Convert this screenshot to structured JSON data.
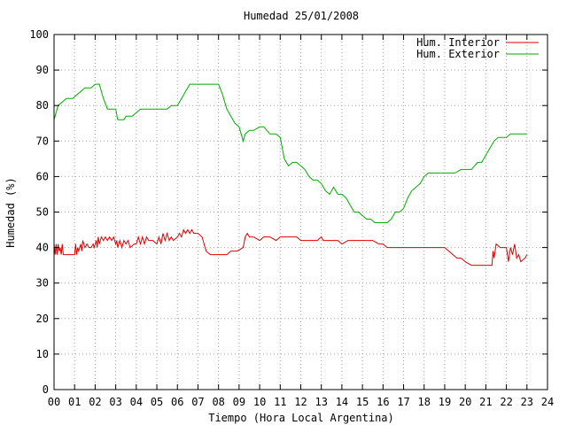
{
  "chart_data": {
    "type": "line",
    "title": "Humedad 25/01/2008",
    "xlabel": "Tiempo (Hora Local Argentina)",
    "ylabel": "Humedad (%)",
    "xlim": [
      0,
      24
    ],
    "ylim": [
      0,
      100
    ],
    "x_ticks": [
      "00",
      "01",
      "02",
      "03",
      "04",
      "05",
      "06",
      "07",
      "08",
      "09",
      "10",
      "11",
      "12",
      "13",
      "14",
      "15",
      "16",
      "17",
      "18",
      "19",
      "20",
      "21",
      "22",
      "23",
      "24"
    ],
    "y_ticks": [
      0,
      10,
      20,
      30,
      40,
      50,
      60,
      70,
      80,
      90,
      100
    ],
    "grid": true,
    "legend_position": "top-right",
    "series": [
      {
        "name": "Hum. Interior",
        "color": "#dd0000",
        "points": [
          [
            0.0,
            41
          ],
          [
            0.05,
            38
          ],
          [
            0.1,
            41
          ],
          [
            0.15,
            38
          ],
          [
            0.2,
            41
          ],
          [
            0.25,
            39
          ],
          [
            0.3,
            40
          ],
          [
            0.35,
            38
          ],
          [
            0.4,
            41
          ],
          [
            0.45,
            38
          ],
          [
            0.5,
            38
          ],
          [
            0.6,
            38
          ],
          [
            0.8,
            38
          ],
          [
            1.0,
            38
          ],
          [
            1.05,
            41
          ],
          [
            1.1,
            38
          ],
          [
            1.15,
            40
          ],
          [
            1.2,
            39
          ],
          [
            1.3,
            41
          ],
          [
            1.35,
            39
          ],
          [
            1.4,
            42
          ],
          [
            1.5,
            40
          ],
          [
            1.6,
            41
          ],
          [
            1.7,
            40
          ],
          [
            1.8,
            40
          ],
          [
            1.9,
            41
          ],
          [
            1.95,
            40
          ],
          [
            2.05,
            42
          ],
          [
            2.1,
            40
          ],
          [
            2.15,
            43
          ],
          [
            2.2,
            41
          ],
          [
            2.3,
            43
          ],
          [
            2.4,
            42
          ],
          [
            2.5,
            43
          ],
          [
            2.6,
            42
          ],
          [
            2.7,
            43
          ],
          [
            2.8,
            42
          ],
          [
            2.9,
            43
          ],
          [
            3.0,
            41
          ],
          [
            3.05,
            42
          ],
          [
            3.1,
            40
          ],
          [
            3.2,
            42
          ],
          [
            3.3,
            40
          ],
          [
            3.4,
            42
          ],
          [
            3.5,
            41
          ],
          [
            3.6,
            42
          ],
          [
            3.7,
            40
          ],
          [
            3.9,
            41
          ],
          [
            4.0,
            41
          ],
          [
            4.1,
            43
          ],
          [
            4.2,
            41
          ],
          [
            4.3,
            43
          ],
          [
            4.4,
            41
          ],
          [
            4.5,
            43
          ],
          [
            4.6,
            42
          ],
          [
            4.7,
            42
          ],
          [
            4.8,
            42
          ],
          [
            5.0,
            41
          ],
          [
            5.1,
            43
          ],
          [
            5.2,
            41
          ],
          [
            5.3,
            44
          ],
          [
            5.4,
            42
          ],
          [
            5.5,
            44
          ],
          [
            5.6,
            42
          ],
          [
            5.7,
            43
          ],
          [
            5.8,
            42
          ],
          [
            6.0,
            43
          ],
          [
            6.1,
            44
          ],
          [
            6.2,
            43
          ],
          [
            6.3,
            45
          ],
          [
            6.4,
            44
          ],
          [
            6.5,
            45
          ],
          [
            6.6,
            44
          ],
          [
            6.7,
            45
          ],
          [
            6.8,
            44
          ],
          [
            7.0,
            44
          ],
          [
            7.2,
            43
          ],
          [
            7.4,
            39
          ],
          [
            7.6,
            38
          ],
          [
            8.0,
            38
          ],
          [
            8.4,
            38
          ],
          [
            8.6,
            39
          ],
          [
            8.9,
            39
          ],
          [
            9.2,
            40
          ],
          [
            9.3,
            43
          ],
          [
            9.4,
            44
          ],
          [
            9.5,
            43
          ],
          [
            9.7,
            43
          ],
          [
            10.0,
            42
          ],
          [
            10.2,
            43
          ],
          [
            10.5,
            43
          ],
          [
            10.8,
            42
          ],
          [
            11.0,
            43
          ],
          [
            11.2,
            43
          ],
          [
            11.5,
            43
          ],
          [
            11.8,
            43
          ],
          [
            12.0,
            42
          ],
          [
            12.2,
            42
          ],
          [
            12.5,
            42
          ],
          [
            12.8,
            42
          ],
          [
            13.0,
            43
          ],
          [
            13.1,
            42
          ],
          [
            13.5,
            42
          ],
          [
            13.8,
            42
          ],
          [
            14.0,
            41
          ],
          [
            14.3,
            42
          ],
          [
            14.6,
            42
          ],
          [
            15.0,
            42
          ],
          [
            15.5,
            42
          ],
          [
            15.8,
            41
          ],
          [
            16.0,
            41
          ],
          [
            16.2,
            40
          ],
          [
            16.6,
            40
          ],
          [
            17.0,
            40
          ],
          [
            17.5,
            40
          ],
          [
            18.0,
            40
          ],
          [
            18.5,
            40
          ],
          [
            19.0,
            40
          ],
          [
            19.2,
            39
          ],
          [
            19.4,
            38
          ],
          [
            19.6,
            37
          ],
          [
            19.8,
            37
          ],
          [
            20.0,
            36
          ],
          [
            20.3,
            35
          ],
          [
            20.6,
            35
          ],
          [
            21.0,
            35
          ],
          [
            21.3,
            35
          ],
          [
            21.35,
            39
          ],
          [
            21.4,
            37
          ],
          [
            21.5,
            41
          ],
          [
            21.7,
            40
          ],
          [
            22.0,
            40
          ],
          [
            22.1,
            36
          ],
          [
            22.2,
            40
          ],
          [
            22.3,
            38
          ],
          [
            22.4,
            41
          ],
          [
            22.5,
            37
          ],
          [
            22.6,
            38
          ],
          [
            22.7,
            36
          ],
          [
            22.9,
            37
          ],
          [
            23.0,
            38
          ]
        ]
      },
      {
        "name": "Hum. Exterior",
        "color": "#00aa00",
        "points": [
          [
            0.0,
            76
          ],
          [
            0.1,
            78
          ],
          [
            0.2,
            80
          ],
          [
            0.4,
            81
          ],
          [
            0.6,
            82
          ],
          [
            0.9,
            82
          ],
          [
            1.1,
            83
          ],
          [
            1.3,
            84
          ],
          [
            1.5,
            85
          ],
          [
            1.8,
            85
          ],
          [
            2.0,
            86
          ],
          [
            2.2,
            86
          ],
          [
            2.4,
            82
          ],
          [
            2.6,
            79
          ],
          [
            3.0,
            79
          ],
          [
            3.1,
            76
          ],
          [
            3.4,
            76
          ],
          [
            3.5,
            77
          ],
          [
            3.8,
            77
          ],
          [
            4.0,
            78
          ],
          [
            4.2,
            79
          ],
          [
            4.5,
            79
          ],
          [
            5.0,
            79
          ],
          [
            5.5,
            79
          ],
          [
            5.7,
            80
          ],
          [
            6.0,
            80
          ],
          [
            6.2,
            82
          ],
          [
            6.4,
            84
          ],
          [
            6.6,
            86
          ],
          [
            7.0,
            86
          ],
          [
            7.5,
            86
          ],
          [
            8.0,
            86
          ],
          [
            8.2,
            83
          ],
          [
            8.4,
            79
          ],
          [
            8.6,
            77
          ],
          [
            8.8,
            75
          ],
          [
            9.0,
            74
          ],
          [
            9.1,
            72
          ],
          [
            9.2,
            70
          ],
          [
            9.3,
            72
          ],
          [
            9.5,
            73
          ],
          [
            9.7,
            73
          ],
          [
            10.0,
            74
          ],
          [
            10.2,
            74
          ],
          [
            10.5,
            72
          ],
          [
            10.8,
            72
          ],
          [
            11.0,
            71
          ],
          [
            11.1,
            68
          ],
          [
            11.2,
            65
          ],
          [
            11.4,
            63
          ],
          [
            11.6,
            64
          ],
          [
            11.8,
            64
          ],
          [
            12.0,
            63
          ],
          [
            12.2,
            62
          ],
          [
            12.4,
            60
          ],
          [
            12.6,
            59
          ],
          [
            12.8,
            59
          ],
          [
            13.0,
            58
          ],
          [
            13.2,
            56
          ],
          [
            13.4,
            55
          ],
          [
            13.6,
            57
          ],
          [
            13.8,
            55
          ],
          [
            14.0,
            55
          ],
          [
            14.2,
            54
          ],
          [
            14.4,
            52
          ],
          [
            14.6,
            50
          ],
          [
            14.8,
            50
          ],
          [
            15.0,
            49
          ],
          [
            15.2,
            48
          ],
          [
            15.4,
            48
          ],
          [
            15.6,
            47
          ],
          [
            15.8,
            47
          ],
          [
            16.0,
            47
          ],
          [
            16.2,
            47
          ],
          [
            16.4,
            48
          ],
          [
            16.6,
            50
          ],
          [
            16.8,
            50
          ],
          [
            17.0,
            51
          ],
          [
            17.2,
            54
          ],
          [
            17.4,
            56
          ],
          [
            17.6,
            57
          ],
          [
            17.8,
            58
          ],
          [
            18.0,
            60
          ],
          [
            18.2,
            61
          ],
          [
            18.5,
            61
          ],
          [
            18.8,
            61
          ],
          [
            19.0,
            61
          ],
          [
            19.2,
            61
          ],
          [
            19.5,
            61
          ],
          [
            19.8,
            62
          ],
          [
            20.0,
            62
          ],
          [
            20.3,
            62
          ],
          [
            20.6,
            64
          ],
          [
            20.8,
            64
          ],
          [
            21.0,
            66
          ],
          [
            21.2,
            68
          ],
          [
            21.4,
            70
          ],
          [
            21.6,
            71
          ],
          [
            21.8,
            71
          ],
          [
            22.0,
            71
          ],
          [
            22.2,
            72
          ],
          [
            22.5,
            72
          ],
          [
            23.0,
            72
          ]
        ]
      }
    ]
  }
}
